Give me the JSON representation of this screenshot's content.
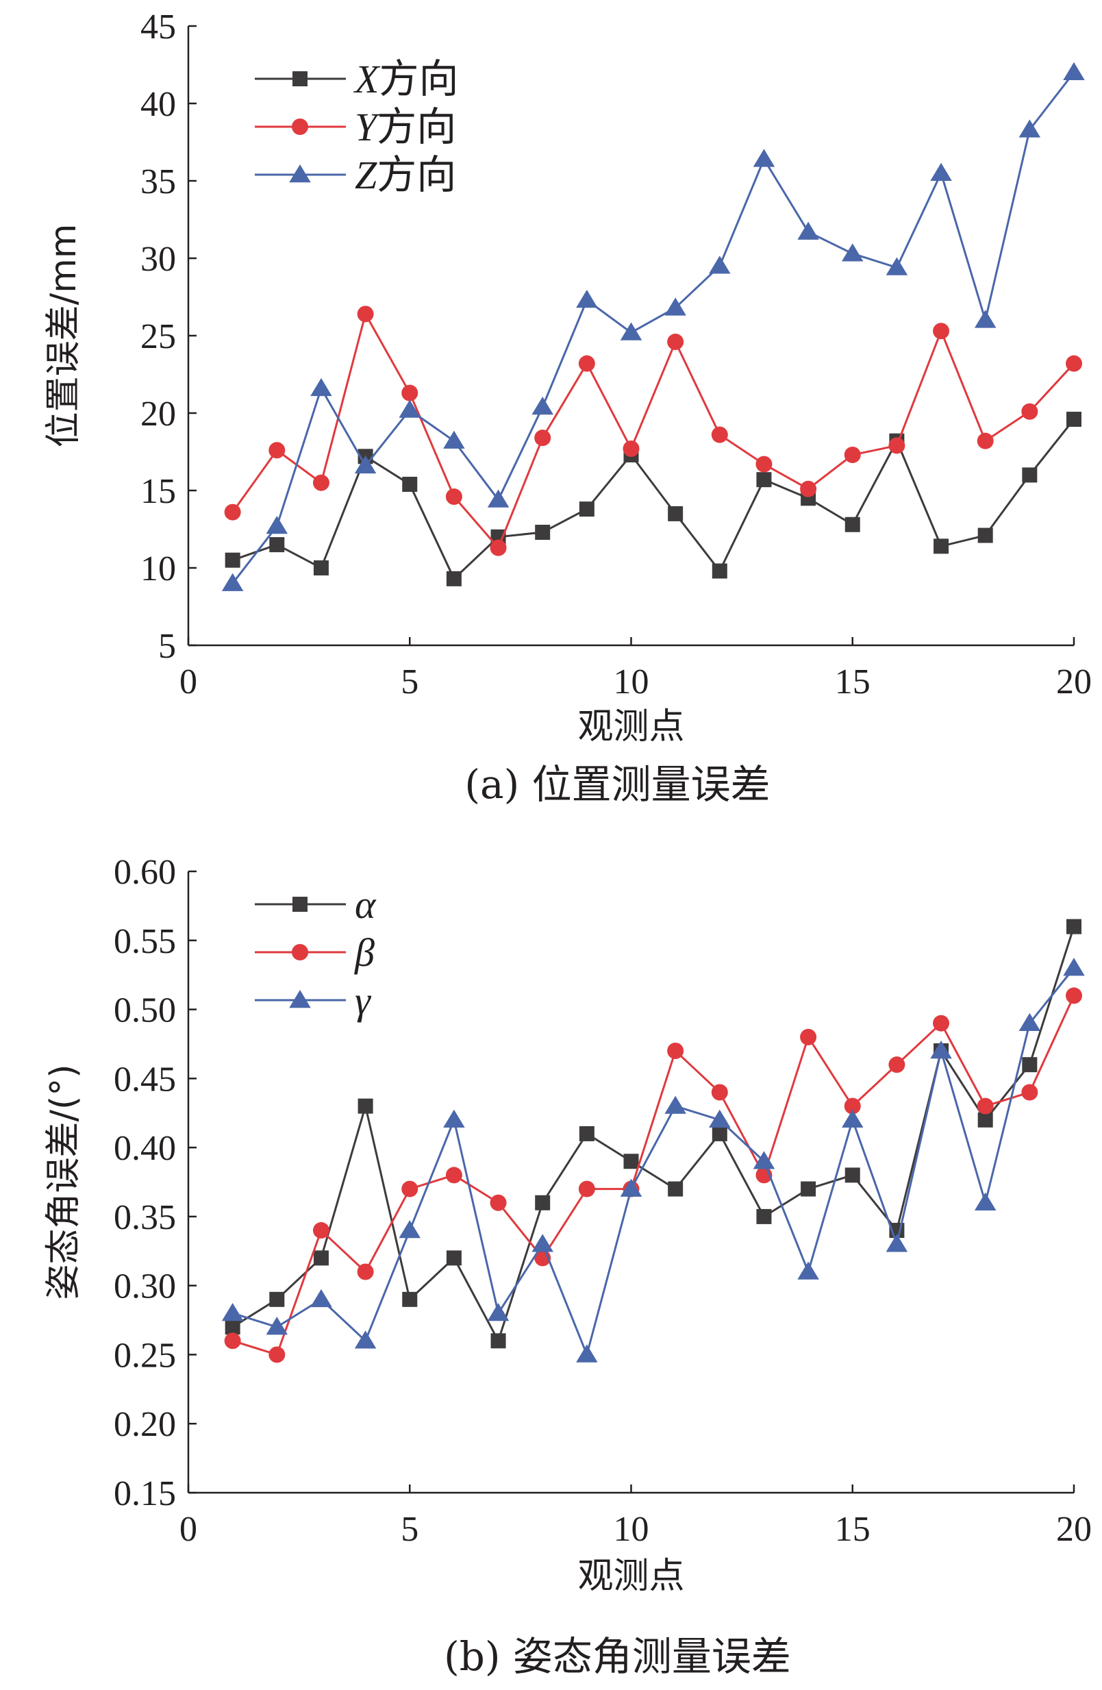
{
  "colors": {
    "series1": "#3d3b3b",
    "series2": "#e03a3e",
    "series3": "#4a67aa",
    "axis": "#231f20"
  },
  "chart_data": [
    {
      "type": "line",
      "caption": "(a) 位置测量误差",
      "xlabel": "观测点",
      "ylabel": "位置误差/mm",
      "xlim": [
        0,
        20
      ],
      "ylim": [
        5,
        45
      ],
      "xticks": [
        0,
        5,
        10,
        15,
        20
      ],
      "yticks": [
        5,
        10,
        15,
        20,
        25,
        30,
        35,
        40,
        45
      ],
      "xtick_labels": [
        "0",
        "5",
        "10",
        "15",
        "20"
      ],
      "ytick_labels": [
        "5",
        "10",
        "15",
        "20",
        "25",
        "30",
        "35",
        "40",
        "45"
      ],
      "grid": false,
      "legend": {
        "position": "top-left"
      },
      "x": [
        1,
        2,
        3,
        4,
        5,
        6,
        7,
        8,
        9,
        10,
        11,
        12,
        13,
        14,
        15,
        16,
        17,
        18,
        19,
        20
      ],
      "series": [
        {
          "name": "X方向",
          "name_var": "X",
          "name_suffix": "方向",
          "marker": "square",
          "color": "#3d3b3b",
          "values": [
            10.5,
            11.5,
            10.0,
            17.2,
            15.4,
            9.3,
            12.0,
            12.3,
            13.8,
            17.3,
            13.5,
            9.8,
            15.7,
            14.5,
            12.8,
            18.2,
            11.4,
            12.1,
            16.0,
            19.6
          ]
        },
        {
          "name": "Y方向",
          "name_var": "Y",
          "name_suffix": "方向",
          "marker": "circle",
          "color": "#e03a3e",
          "values": [
            13.6,
            17.6,
            15.5,
            26.4,
            21.3,
            14.6,
            11.3,
            18.4,
            23.2,
            17.7,
            24.6,
            18.6,
            16.7,
            15.1,
            17.3,
            17.9,
            25.3,
            18.2,
            20.1,
            23.2
          ]
        },
        {
          "name": "Z方向",
          "name_var": "Z",
          "name_suffix": "方向",
          "marker": "triangle",
          "color": "#4a67aa",
          "values": [
            9.0,
            12.7,
            21.6,
            16.6,
            20.2,
            18.2,
            14.4,
            20.4,
            27.3,
            25.2,
            26.8,
            29.5,
            36.4,
            31.7,
            30.3,
            29.4,
            35.5,
            26.0,
            38.3,
            42.0
          ]
        }
      ]
    },
    {
      "type": "line",
      "caption": "(b) 姿态角测量误差",
      "xlabel": "观测点",
      "ylabel": "姿态角误差/(°)",
      "xlim": [
        0,
        20
      ],
      "ylim": [
        0.15,
        0.6
      ],
      "xticks": [
        0,
        5,
        10,
        15,
        20
      ],
      "yticks": [
        0.15,
        0.2,
        0.25,
        0.3,
        0.35,
        0.4,
        0.45,
        0.5,
        0.55,
        0.6
      ],
      "xtick_labels": [
        "0",
        "5",
        "10",
        "15",
        "20"
      ],
      "ytick_labels": [
        "0.15",
        "0.20",
        "0.25",
        "0.30",
        "0.35",
        "0.40",
        "0.45",
        "0.50",
        "0.55",
        "0.60"
      ],
      "grid": false,
      "legend": {
        "position": "top-left"
      },
      "x": [
        1,
        2,
        3,
        4,
        5,
        6,
        7,
        8,
        9,
        10,
        11,
        12,
        13,
        14,
        15,
        16,
        17,
        18,
        19,
        20
      ],
      "series": [
        {
          "name": "α",
          "name_var": "α",
          "name_suffix": "",
          "marker": "square",
          "color": "#3d3b3b",
          "values": [
            0.27,
            0.29,
            0.32,
            0.43,
            0.29,
            0.32,
            0.26,
            0.36,
            0.41,
            0.39,
            0.37,
            0.41,
            0.35,
            0.37,
            0.38,
            0.34,
            0.47,
            0.42,
            0.46,
            0.56
          ]
        },
        {
          "name": "β",
          "name_var": "β",
          "name_suffix": "",
          "marker": "circle",
          "color": "#e03a3e",
          "values": [
            0.26,
            0.25,
            0.34,
            0.31,
            0.37,
            0.38,
            0.36,
            0.32,
            0.37,
            0.37,
            0.47,
            0.44,
            0.38,
            0.48,
            0.43,
            0.46,
            0.49,
            0.43,
            0.44,
            0.51
          ]
        },
        {
          "name": "γ",
          "name_var": "γ",
          "name_suffix": "",
          "marker": "triangle",
          "color": "#4a67aa",
          "values": [
            0.28,
            0.27,
            0.29,
            0.26,
            0.34,
            0.42,
            0.28,
            0.33,
            0.25,
            0.37,
            0.43,
            0.42,
            0.39,
            0.31,
            0.42,
            0.33,
            0.47,
            0.36,
            0.49,
            0.53
          ]
        }
      ]
    }
  ]
}
